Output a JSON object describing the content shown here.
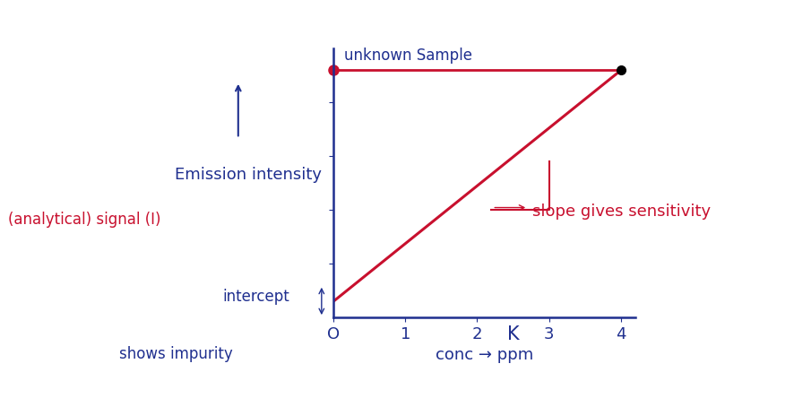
{
  "chart_data": {
    "type": "line",
    "x_label": "conc → ppm",
    "y_label": "Emission intensity",
    "x": [
      0,
      4
    ],
    "values": [
      0.3,
      4.6
    ],
    "color": "#c8102e",
    "xlim": [
      0,
      4.2
    ],
    "xticks": [
      {
        "value": 0,
        "label": "O"
      },
      1,
      2,
      3,
      4
    ],
    "ylim": [
      0,
      5
    ],
    "yticks": [
      1,
      2,
      3,
      4
    ],
    "tick_labels": "x",
    "unknown_sample": {
      "label": "unknown Sample",
      "x": 4,
      "y": 4.6,
      "color": "#c8102e"
    },
    "annotations": {
      "signal": {
        "text": "(analytical) signal (I)",
        "color": "#c8102e"
      },
      "slope": {
        "text": "slope gives sensitivity",
        "color": "#c8102e"
      },
      "intercept": {
        "text": "intercept",
        "color": "#1f2f8f"
      },
      "impurity": {
        "text": "shows impurity",
        "color": "#1f2f8f"
      },
      "element": {
        "text": "K",
        "color": "#1f2f8f"
      }
    },
    "text_color": "#1f2f8f"
  }
}
